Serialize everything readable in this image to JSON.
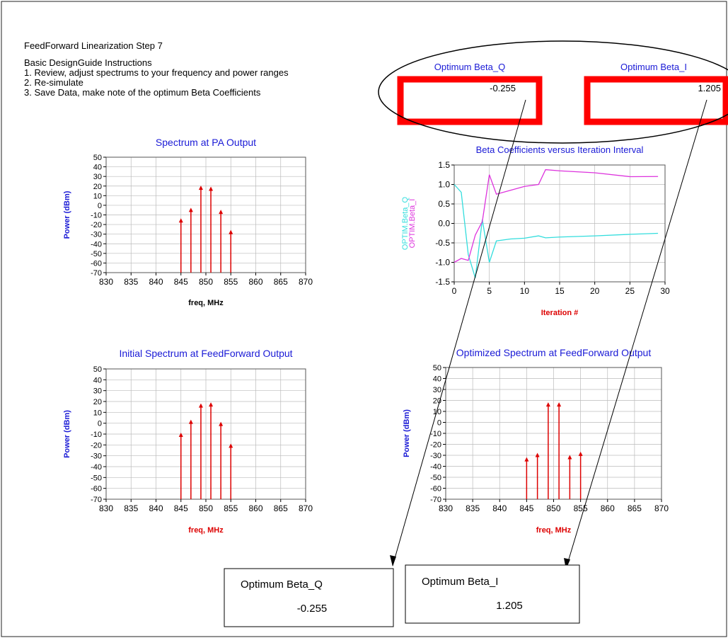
{
  "header": {
    "title": "FeedForward Linearization Step 7",
    "lines": [
      "Basic DesignGuide Instructions",
      "1. Review, adjust spectrums to your frequency and power ranges",
      "2. Re-simulate",
      "3. Save Data, make note of the optimum Beta Coefficients"
    ]
  },
  "beta_displays": [
    {
      "label": "Optimum Beta_Q",
      "value": "-0.255"
    },
    {
      "label": "Optimum Beta_I",
      "value": "1.205"
    }
  ],
  "note_boxes": [
    {
      "label": "Optimum Beta_Q",
      "value": "-0.255"
    },
    {
      "label": "Optimum Beta_I",
      "value": "1.205"
    }
  ],
  "colors": {
    "title_blue": "#1a1ad6",
    "stem_red": "#dd0000",
    "label_red": "#dd0000",
    "beta_q": "#33dddd",
    "beta_i": "#dd33dd",
    "highlight_red": "#ff0000",
    "grid": "#bbbbbb"
  },
  "chart_data": [
    {
      "id": "pa-output",
      "type": "stem",
      "title": "Spectrum at PA Output",
      "xlabel": "freq, MHz",
      "ylabel": "Power (dBm)",
      "xlim": [
        830,
        870
      ],
      "ylim": [
        -70,
        50
      ],
      "xticks": [
        "830",
        "835",
        "840",
        "845",
        "850",
        "855",
        "860",
        "865",
        "870"
      ],
      "yticks": [
        "50",
        "40",
        "30",
        "20",
        "10",
        "0",
        "-10",
        "-20",
        "-30",
        "-40",
        "-50",
        "-60",
        "-70"
      ],
      "x": [
        845,
        847,
        849,
        851,
        853,
        855
      ],
      "y": [
        -15,
        -4,
        19,
        18,
        -6,
        -27
      ],
      "grid": true,
      "xlabel_color": "black"
    },
    {
      "id": "beta-iteration",
      "type": "line",
      "title": "Beta Coefficients versus Iteration Interval",
      "xlabel": "Iteration #",
      "ylabel_series": [
        "OPTIM.Beta_Q",
        "OPTIM.Beta_I"
      ],
      "xlim": [
        0,
        30
      ],
      "ylim": [
        -1.5,
        1.5
      ],
      "xticks": [
        "0",
        "5",
        "10",
        "15",
        "20",
        "25",
        "30"
      ],
      "yticks": [
        "1.5",
        "1.0",
        "0.5",
        "0.0",
        "-0.5",
        "-1.0",
        "-1.5"
      ],
      "grid": true,
      "series": [
        {
          "name": "OPTIM.Beta_Q",
          "x": [
            0,
            1,
            2,
            3,
            4,
            5,
            6,
            8,
            10,
            12,
            13,
            15,
            20,
            25,
            29
          ],
          "y": [
            1.0,
            0.8,
            -0.8,
            -1.4,
            0.1,
            -1.0,
            -0.45,
            -0.4,
            -0.38,
            -0.32,
            -0.37,
            -0.35,
            -0.32,
            -0.28,
            -0.255
          ]
        },
        {
          "name": "OPTIM.Beta_I",
          "x": [
            0,
            1,
            2,
            3,
            4,
            5,
            6,
            8,
            10,
            12,
            13,
            15,
            20,
            25,
            29
          ],
          "y": [
            -1.0,
            -0.9,
            -0.95,
            -0.3,
            0.05,
            1.25,
            0.75,
            0.85,
            0.95,
            1.0,
            1.38,
            1.35,
            1.3,
            1.2,
            1.205
          ]
        }
      ]
    },
    {
      "id": "initial-ff-output",
      "type": "stem",
      "title": "Initial Spectrum at  FeedForward Output",
      "xlabel": "freq, MHz",
      "ylabel": "Power (dBm)",
      "xlim": [
        830,
        870
      ],
      "ylim": [
        -70,
        50
      ],
      "xticks": [
        "830",
        "835",
        "840",
        "845",
        "850",
        "855",
        "860",
        "865",
        "870"
      ],
      "yticks": [
        "50",
        "40",
        "30",
        "20",
        "10",
        "0",
        "-10",
        "-20",
        "-30",
        "-40",
        "-50",
        "-60",
        "-70"
      ],
      "x": [
        845,
        847,
        849,
        851,
        853,
        855
      ],
      "y": [
        -10,
        2,
        17,
        18,
        0,
        -20
      ],
      "grid": true,
      "xlabel_color": "red"
    },
    {
      "id": "optimized-ff-output",
      "type": "stem",
      "title": "Optimized Spectrum at FeedForward Output",
      "xlabel": "freq, MHz",
      "ylabel": "Power (dBm)",
      "xlim": [
        830,
        870
      ],
      "ylim": [
        -70,
        50
      ],
      "xticks": [
        "830",
        "835",
        "840",
        "845",
        "850",
        "855",
        "860",
        "865",
        "870"
      ],
      "yticks": [
        "50",
        "40",
        "30",
        "20",
        "10",
        "0",
        "-10",
        "-20",
        "-30",
        "-40",
        "-50",
        "-60",
        "-70"
      ],
      "x": [
        845,
        847,
        849,
        851,
        853,
        855
      ],
      "y": [
        -33,
        -29,
        17,
        17,
        -31,
        -28
      ],
      "grid": true,
      "xlabel_color": "red"
    }
  ]
}
